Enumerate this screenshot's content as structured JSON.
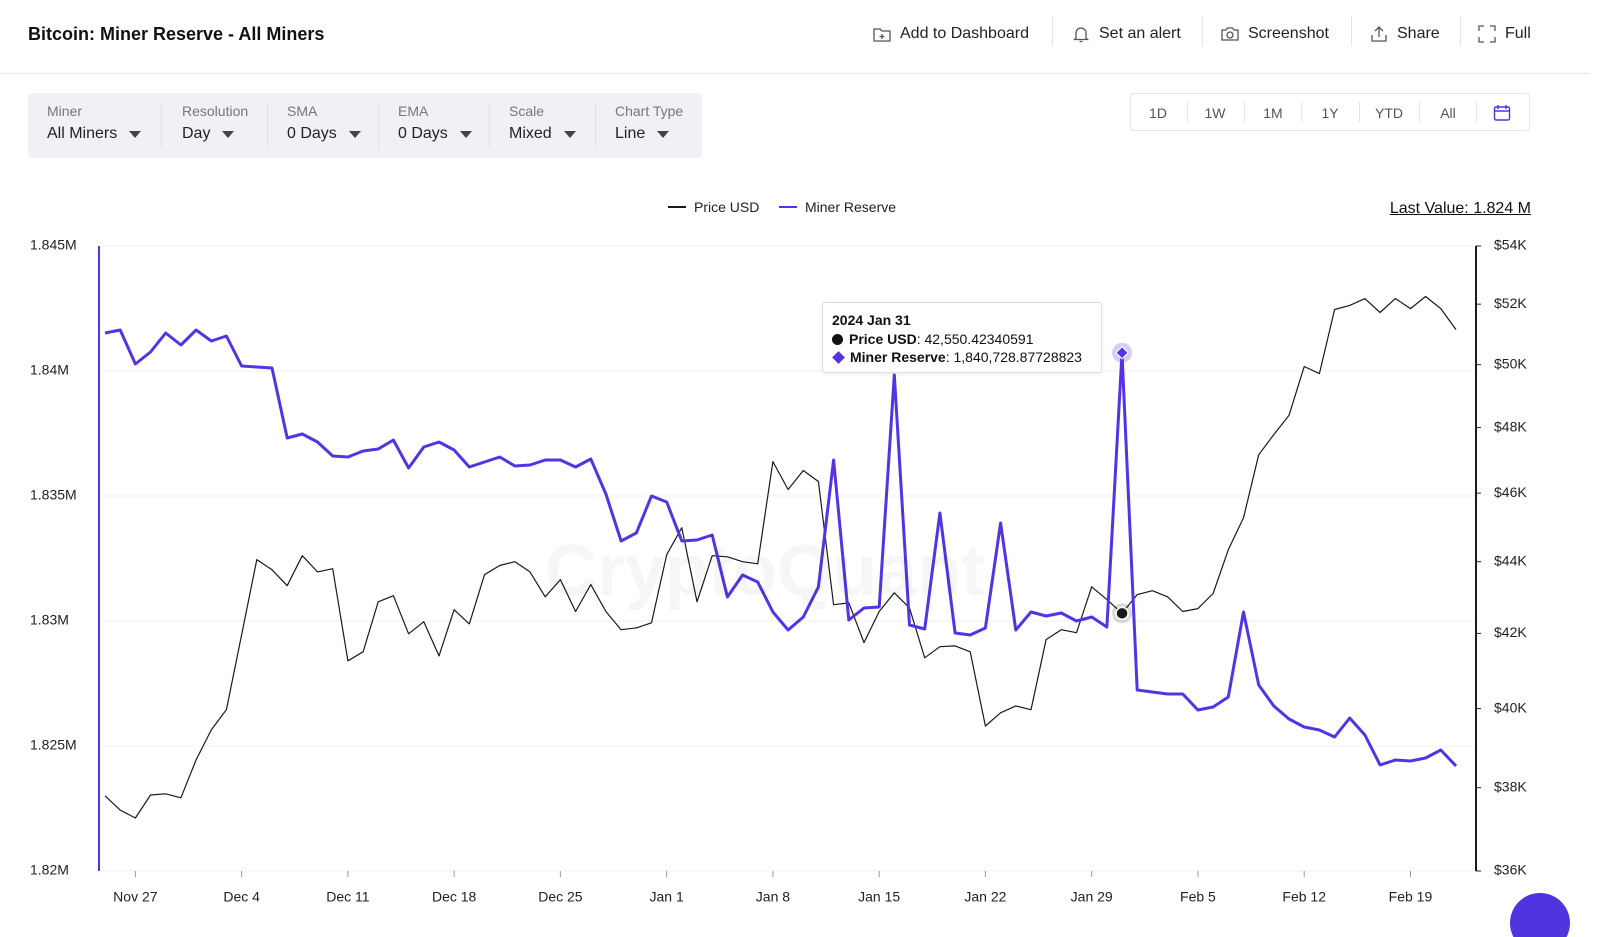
{
  "header": {
    "title": "Bitcoin: Miner Reserve - All Miners",
    "buttons": [
      "Add to Dashboard",
      "Set an alert",
      "Screenshot",
      "Share",
      "Full"
    ]
  },
  "controls": [
    {
      "label": "Miner",
      "value": "All Miners"
    },
    {
      "label": "Resolution",
      "value": "Day"
    },
    {
      "label": "SMA",
      "value": "0 Days"
    },
    {
      "label": "EMA",
      "value": "0 Days"
    },
    {
      "label": "Scale",
      "value": "Mixed"
    },
    {
      "label": "Chart Type",
      "value": "Line"
    }
  ],
  "ranges": [
    "1D",
    "1W",
    "1M",
    "1Y",
    "YTD",
    "All"
  ],
  "last_value": "Last Value: 1.824 M",
  "watermark": "CryptoQuant",
  "chart_data": {
    "type": "line",
    "x": [
      "2023-11-25",
      "2023-11-26",
      "2023-11-27",
      "2023-11-28",
      "2023-11-29",
      "2023-11-30",
      "2023-12-01",
      "2023-12-02",
      "2023-12-03",
      "2023-12-04",
      "2023-12-05",
      "2023-12-06",
      "2023-12-07",
      "2023-12-08",
      "2023-12-09",
      "2023-12-10",
      "2023-12-11",
      "2023-12-12",
      "2023-12-13",
      "2023-12-14",
      "2023-12-15",
      "2023-12-16",
      "2023-12-17",
      "2023-12-18",
      "2023-12-19",
      "2023-12-20",
      "2023-12-21",
      "2023-12-22",
      "2023-12-23",
      "2023-12-24",
      "2023-12-25",
      "2023-12-26",
      "2023-12-27",
      "2023-12-28",
      "2023-12-29",
      "2023-12-30",
      "2023-12-31",
      "2024-01-01",
      "2024-01-02",
      "2024-01-03",
      "2024-01-04",
      "2024-01-05",
      "2024-01-06",
      "2024-01-07",
      "2024-01-08",
      "2024-01-09",
      "2024-01-10",
      "2024-01-11",
      "2024-01-12",
      "2024-01-13",
      "2024-01-14",
      "2024-01-15",
      "2024-01-16",
      "2024-01-17",
      "2024-01-18",
      "2024-01-19",
      "2024-01-20",
      "2024-01-21",
      "2024-01-22",
      "2024-01-23",
      "2024-01-24",
      "2024-01-25",
      "2024-01-26",
      "2024-01-27",
      "2024-01-28",
      "2024-01-29",
      "2024-01-30",
      "2024-01-31",
      "2024-02-01",
      "2024-02-02",
      "2024-02-03",
      "2024-02-04",
      "2024-02-05",
      "2024-02-06",
      "2024-02-07",
      "2024-02-08",
      "2024-02-09",
      "2024-02-10",
      "2024-02-11",
      "2024-02-12",
      "2024-02-13",
      "2024-02-14",
      "2024-02-15",
      "2024-02-16",
      "2024-02-17",
      "2024-02-18",
      "2024-02-19",
      "2024-02-20",
      "2024-02-21",
      "2024-02-22"
    ],
    "xlim": [
      "2023-11-25",
      "2024-02-22"
    ],
    "xticks": [
      {
        "value": "2023-11-27",
        "label": "Nov 27"
      },
      {
        "value": "2023-12-04",
        "label": "Dec 4"
      },
      {
        "value": "2023-12-11",
        "label": "Dec 11"
      },
      {
        "value": "2023-12-18",
        "label": "Dec 18"
      },
      {
        "value": "2023-12-25",
        "label": "Dec 25"
      },
      {
        "value": "2024-01-01",
        "label": "Jan 1"
      },
      {
        "value": "2024-01-08",
        "label": "Jan 8"
      },
      {
        "value": "2024-01-15",
        "label": "Jan 15"
      },
      {
        "value": "2024-01-22",
        "label": "Jan 22"
      },
      {
        "value": "2024-01-29",
        "label": "Jan 29"
      },
      {
        "value": "2024-02-05",
        "label": "Feb 5"
      },
      {
        "value": "2024-02-12",
        "label": "Feb 12"
      },
      {
        "value": "2024-02-19",
        "label": "Feb 19"
      }
    ],
    "ylim": [
      1820000,
      1845000
    ],
    "yticks": [
      {
        "value": 1820000,
        "label": "1.82M"
      },
      {
        "value": 1825000,
        "label": "1.825M"
      },
      {
        "value": 1830000,
        "label": "1.83M"
      },
      {
        "value": 1835000,
        "label": "1.835M"
      },
      {
        "value": 1840000,
        "label": "1.84M"
      },
      {
        "value": 1845000,
        "label": "1.845M"
      }
    ],
    "y2lim": [
      36000,
      54000
    ],
    "y2log": true,
    "y2ticks": [
      {
        "value": 36000,
        "label": "$36K"
      },
      {
        "value": 38000,
        "label": "$38K"
      },
      {
        "value": 40000,
        "label": "$40K"
      },
      {
        "value": 42000,
        "label": "$42K"
      },
      {
        "value": 44000,
        "label": "$44K"
      },
      {
        "value": 46000,
        "label": "$46K"
      },
      {
        "value": 48000,
        "label": "$48K"
      },
      {
        "value": 50000,
        "label": "$50K"
      },
      {
        "value": 52000,
        "label": "$52K"
      },
      {
        "value": 54000,
        "label": "$54K"
      }
    ],
    "grid": true,
    "legend": "top",
    "series": [
      {
        "name": "Price USD",
        "color": "#1a1a1a",
        "axis": "y2",
        "values": [
          37800,
          37450,
          37260,
          37820,
          37850,
          37750,
          38690,
          39450,
          39970,
          41960,
          44060,
          43770,
          43320,
          44170,
          43710,
          43800,
          41260,
          41500,
          42870,
          43040,
          41990,
          42320,
          41390,
          42650,
          42260,
          43630,
          43890,
          44000,
          43710,
          43010,
          43490,
          42600,
          43350,
          42600,
          42100,
          42150,
          42290,
          44200,
          44980,
          42870,
          44170,
          44140,
          44000,
          43940,
          46950,
          46110,
          46680,
          46350,
          42790,
          42840,
          41750,
          42600,
          43120,
          42700,
          41340,
          41640,
          41660,
          41500,
          39550,
          39890,
          40070,
          39970,
          41830,
          42100,
          42020,
          43290,
          42930,
          42550.42340591,
          43070,
          43180,
          43010,
          42600,
          42680,
          43100,
          44340,
          45270,
          47160,
          47780,
          48380,
          49940,
          49710,
          51820,
          51960,
          52190,
          51720,
          52190,
          51850,
          52260,
          51850,
          51150
        ]
      },
      {
        "name": "Miner Reserve",
        "color": "#5433e6",
        "axis": "y",
        "values": [
          1841520,
          1841640,
          1840280,
          1840760,
          1841520,
          1841040,
          1841640,
          1841200,
          1841400,
          1840200,
          1840160,
          1840120,
          1837320,
          1837480,
          1837160,
          1836600,
          1836560,
          1836800,
          1836880,
          1837240,
          1836120,
          1836960,
          1837160,
          1836840,
          1836160,
          1836360,
          1836560,
          1836200,
          1836240,
          1836440,
          1836440,
          1836160,
          1836480,
          1835080,
          1833200,
          1833520,
          1835000,
          1834760,
          1833200,
          1833240,
          1833440,
          1830960,
          1831840,
          1831560,
          1830360,
          1829640,
          1830160,
          1831360,
          1836440,
          1830040,
          1830520,
          1830560,
          1839840,
          1829840,
          1829680,
          1834320,
          1829520,
          1829440,
          1829720,
          1833920,
          1829640,
          1830360,
          1830200,
          1830320,
          1830000,
          1830160,
          1829760,
          1840728.87728823,
          1827240,
          1827160,
          1827080,
          1827080,
          1826440,
          1826560,
          1826960,
          1830360,
          1827440,
          1826600,
          1826080,
          1825760,
          1825640,
          1825360,
          1826120,
          1825440,
          1824240,
          1824440,
          1824400,
          1824520,
          1824840,
          1824200
        ]
      }
    ],
    "tooltip": {
      "index": 67,
      "title": "2024 Jan 31",
      "values": [
        "42,550.42340591",
        "1,840,728.87728823"
      ]
    }
  }
}
